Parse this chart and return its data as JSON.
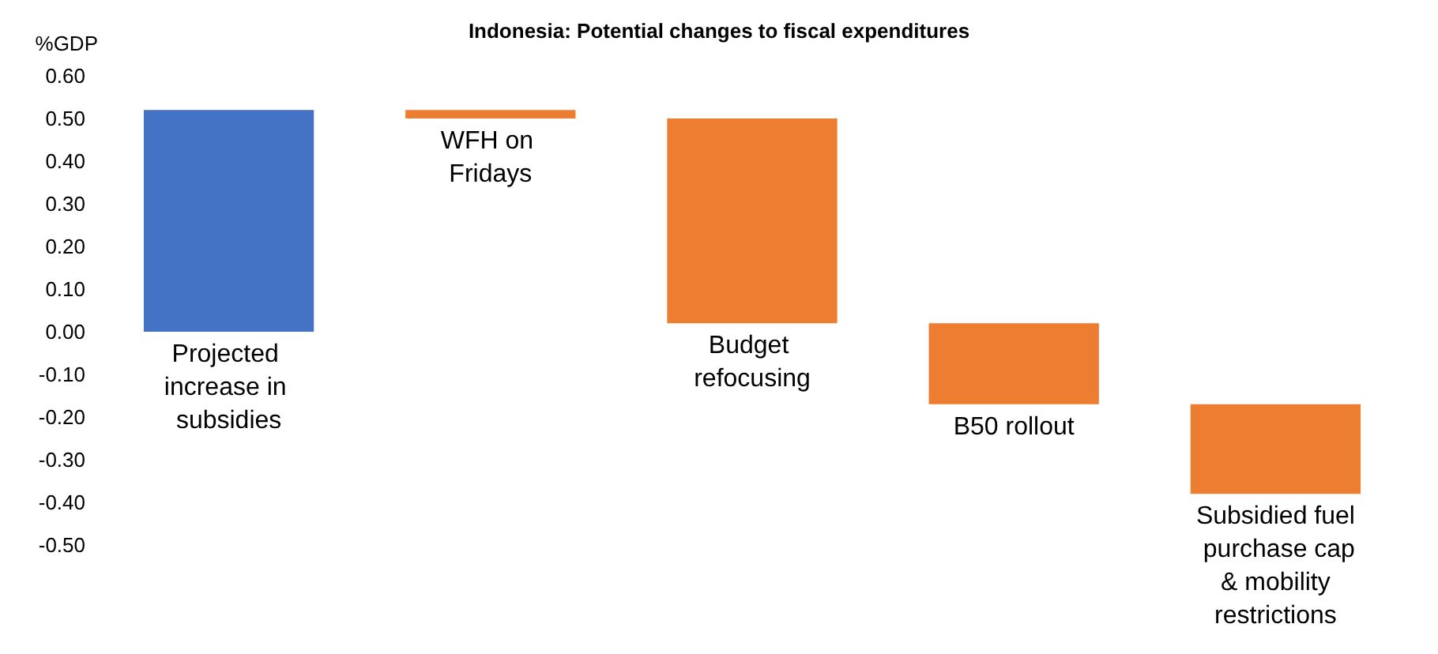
{
  "chart_data": {
    "type": "bar",
    "title": "Indonesia: Potential changes to fiscal expenditures",
    "ylabel": "%GDP",
    "categories": [
      "Projected increase in subsidies",
      "WFH on Fridays",
      "Budget refocusing",
      "B50 rollout",
      "Subsidied fuel purchase cap & mobility restrictions"
    ],
    "values": [
      0.52,
      -0.02,
      -0.48,
      -0.19,
      -0.21
    ],
    "base": [
      0,
      0.52,
      0.5,
      0.02,
      -0.17
    ],
    "colors": [
      "#4472c4",
      "#ed7d31",
      "#ed7d31",
      "#ed7d31",
      "#ed7d31"
    ],
    "ylim": [
      -0.5,
      0.6
    ],
    "yticks": [
      {
        "value": -0.5,
        "label": "-0.50"
      },
      {
        "value": -0.4,
        "label": "-0.40"
      },
      {
        "value": -0.3,
        "label": "-0.30"
      },
      {
        "value": -0.2,
        "label": "-0.20"
      },
      {
        "value": -0.1,
        "label": "-0.10"
      },
      {
        "value": 0,
        "label": "0.00"
      },
      {
        "value": 0.1,
        "label": "0.10"
      },
      {
        "value": 0.2,
        "label": "0.20"
      },
      {
        "value": 0.3,
        "label": "0.30"
      },
      {
        "value": 0.4,
        "label": "0.40"
      },
      {
        "value": 0.5,
        "label": "0.50"
      },
      {
        "value": 0.6,
        "label": "0.60"
      }
    ],
    "grid": false
  }
}
